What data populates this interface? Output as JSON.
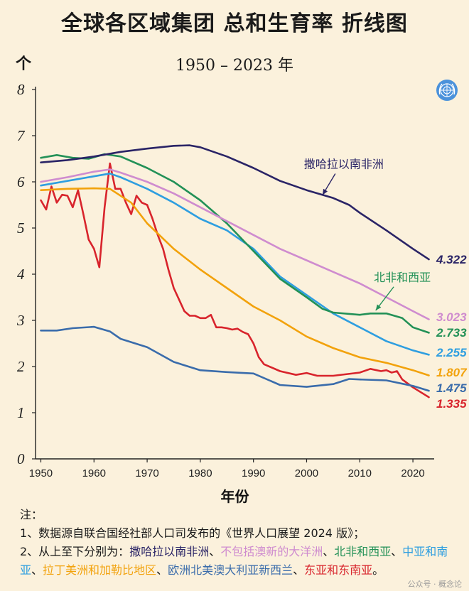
{
  "title": "全球各区域集团 总和生育率 折线图",
  "chart_data": {
    "type": "line",
    "title": "全球各区域集团 总和生育率 折线图",
    "subtitle": "1950 – 2023 年",
    "ylabel": "个",
    "xlabel": "年份",
    "xlim": [
      1949,
      2024
    ],
    "ylim": [
      0,
      8
    ],
    "xticks": [
      1950,
      1960,
      1970,
      1980,
      1990,
      2000,
      2010,
      2020
    ],
    "yticks": [
      0,
      1,
      2,
      3,
      4,
      5,
      6,
      7,
      8
    ],
    "grid": false,
    "series": [
      {
        "name": "撒哈拉以南非洲",
        "color": "#2a2466",
        "end_label": "4.322",
        "points": [
          [
            1950,
            6.42
          ],
          [
            1955,
            6.47
          ],
          [
            1960,
            6.55
          ],
          [
            1965,
            6.65
          ],
          [
            1970,
            6.72
          ],
          [
            1975,
            6.78
          ],
          [
            1978,
            6.79
          ],
          [
            1980,
            6.75
          ],
          [
            1985,
            6.55
          ],
          [
            1990,
            6.3
          ],
          [
            1995,
            6.02
          ],
          [
            2000,
            5.82
          ],
          [
            2005,
            5.65
          ],
          [
            2008,
            5.5
          ],
          [
            2010,
            5.33
          ],
          [
            2015,
            4.95
          ],
          [
            2020,
            4.55
          ],
          [
            2023,
            4.322
          ]
        ]
      },
      {
        "name": "不包括澳新的大洋洲",
        "color": "#cf8ccf",
        "end_label": "3.023",
        "points": [
          [
            1950,
            6.0
          ],
          [
            1955,
            6.1
          ],
          [
            1960,
            6.22
          ],
          [
            1963,
            6.27
          ],
          [
            1965,
            6.2
          ],
          [
            1970,
            6.0
          ],
          [
            1975,
            5.75
          ],
          [
            1980,
            5.45
          ],
          [
            1985,
            5.15
          ],
          [
            1990,
            4.85
          ],
          [
            1995,
            4.55
          ],
          [
            2000,
            4.3
          ],
          [
            2005,
            4.05
          ],
          [
            2010,
            3.8
          ],
          [
            2015,
            3.5
          ],
          [
            2020,
            3.2
          ],
          [
            2023,
            3.023
          ]
        ]
      },
      {
        "name": "北非和西亚",
        "color": "#239157",
        "end_label": "2.733",
        "points": [
          [
            1950,
            6.52
          ],
          [
            1953,
            6.58
          ],
          [
            1956,
            6.52
          ],
          [
            1959,
            6.5
          ],
          [
            1962,
            6.6
          ],
          [
            1965,
            6.55
          ],
          [
            1970,
            6.3
          ],
          [
            1975,
            6.0
          ],
          [
            1980,
            5.6
          ],
          [
            1985,
            5.1
          ],
          [
            1990,
            4.5
          ],
          [
            1995,
            3.9
          ],
          [
            2000,
            3.5
          ],
          [
            2003,
            3.25
          ],
          [
            2005,
            3.17
          ],
          [
            2010,
            3.12
          ],
          [
            2012,
            3.15
          ],
          [
            2015,
            3.15
          ],
          [
            2018,
            3.05
          ],
          [
            2020,
            2.85
          ],
          [
            2023,
            2.733
          ]
        ]
      },
      {
        "name": "中亚和南亚",
        "color": "#2e9ee0",
        "end_label": "2.255",
        "points": [
          [
            1950,
            5.92
          ],
          [
            1955,
            6.02
          ],
          [
            1960,
            6.12
          ],
          [
            1963,
            6.18
          ],
          [
            1965,
            6.1
          ],
          [
            1970,
            5.85
          ],
          [
            1975,
            5.55
          ],
          [
            1980,
            5.2
          ],
          [
            1985,
            4.95
          ],
          [
            1990,
            4.55
          ],
          [
            1995,
            3.95
          ],
          [
            2000,
            3.55
          ],
          [
            2005,
            3.15
          ],
          [
            2010,
            2.85
          ],
          [
            2015,
            2.55
          ],
          [
            2020,
            2.35
          ],
          [
            2023,
            2.255
          ]
        ]
      },
      {
        "name": "拉丁美洲和加勒比地区",
        "color": "#f2a20c",
        "end_label": "1.807",
        "points": [
          [
            1950,
            5.82
          ],
          [
            1955,
            5.85
          ],
          [
            1960,
            5.86
          ],
          [
            1963,
            5.85
          ],
          [
            1967,
            5.55
          ],
          [
            1970,
            5.1
          ],
          [
            1975,
            4.55
          ],
          [
            1980,
            4.1
          ],
          [
            1985,
            3.7
          ],
          [
            1990,
            3.3
          ],
          [
            1995,
            3.0
          ],
          [
            2000,
            2.65
          ],
          [
            2005,
            2.4
          ],
          [
            2010,
            2.2
          ],
          [
            2015,
            2.08
          ],
          [
            2020,
            1.92
          ],
          [
            2023,
            1.807
          ]
        ]
      },
      {
        "name": "欧洲北美澳大利亚新西兰",
        "color": "#3a6cab",
        "end_label": "1.475",
        "points": [
          [
            1950,
            2.78
          ],
          [
            1953,
            2.78
          ],
          [
            1956,
            2.83
          ],
          [
            1960,
            2.86
          ],
          [
            1963,
            2.76
          ],
          [
            1965,
            2.6
          ],
          [
            1970,
            2.42
          ],
          [
            1975,
            2.1
          ],
          [
            1980,
            1.92
          ],
          [
            1985,
            1.88
          ],
          [
            1990,
            1.85
          ],
          [
            1995,
            1.6
          ],
          [
            2000,
            1.56
          ],
          [
            2005,
            1.62
          ],
          [
            2008,
            1.73
          ],
          [
            2010,
            1.72
          ],
          [
            2015,
            1.7
          ],
          [
            2020,
            1.58
          ],
          [
            2023,
            1.475
          ]
        ]
      },
      {
        "name": "东亚和东南亚",
        "color": "#d8242c",
        "end_label": "1.335",
        "points": [
          [
            1950,
            5.6
          ],
          [
            1951,
            5.4
          ],
          [
            1952,
            5.9
          ],
          [
            1953,
            5.55
          ],
          [
            1954,
            5.72
          ],
          [
            1955,
            5.7
          ],
          [
            1956,
            5.45
          ],
          [
            1957,
            5.82
          ],
          [
            1958,
            5.3
          ],
          [
            1959,
            4.75
          ],
          [
            1960,
            4.55
          ],
          [
            1961,
            4.15
          ],
          [
            1962,
            5.45
          ],
          [
            1963,
            6.4
          ],
          [
            1964,
            5.85
          ],
          [
            1965,
            5.85
          ],
          [
            1966,
            5.55
          ],
          [
            1967,
            5.3
          ],
          [
            1968,
            5.7
          ],
          [
            1969,
            5.55
          ],
          [
            1970,
            5.5
          ],
          [
            1971,
            5.2
          ],
          [
            1972,
            4.85
          ],
          [
            1973,
            4.55
          ],
          [
            1974,
            4.1
          ],
          [
            1975,
            3.7
          ],
          [
            1976,
            3.45
          ],
          [
            1977,
            3.2
          ],
          [
            1978,
            3.1
          ],
          [
            1979,
            3.1
          ],
          [
            1980,
            3.05
          ],
          [
            1981,
            3.05
          ],
          [
            1982,
            3.12
          ],
          [
            1983,
            2.85
          ],
          [
            1984,
            2.85
          ],
          [
            1985,
            2.83
          ],
          [
            1986,
            2.8
          ],
          [
            1987,
            2.82
          ],
          [
            1988,
            2.75
          ],
          [
            1989,
            2.7
          ],
          [
            1990,
            2.5
          ],
          [
            1991,
            2.2
          ],
          [
            1992,
            2.05
          ],
          [
            1995,
            1.9
          ],
          [
            1998,
            1.82
          ],
          [
            2000,
            1.86
          ],
          [
            2002,
            1.8
          ],
          [
            2005,
            1.8
          ],
          [
            2010,
            1.87
          ],
          [
            2012,
            1.95
          ],
          [
            2014,
            1.9
          ],
          [
            2015,
            1.92
          ],
          [
            2016,
            1.87
          ],
          [
            2017,
            1.9
          ],
          [
            2018,
            1.72
          ],
          [
            2020,
            1.55
          ],
          [
            2023,
            1.335
          ]
        ]
      }
    ],
    "annotations": [
      {
        "text": "撒哈拉以南非洲",
        "series": 0,
        "at": [
          2003,
          5.67
        ],
        "label_at": [
          2007,
          6.3
        ]
      },
      {
        "text": "北非和西亚",
        "series": 2,
        "at": [
          2013,
          3.17
        ],
        "label_at": [
          2018,
          3.85
        ]
      }
    ]
  },
  "notes": {
    "heading": "注：",
    "line1": "1、数据源自联合国经社部人口司发布的《世界人口展望 2024 版》；",
    "line2_prefix": "2、从上至下分别为：",
    "line2_suffix": "。",
    "separator": "、",
    "items": [
      {
        "text": "撒哈拉以南非洲",
        "color": "#2a2466"
      },
      {
        "text": "不包括澳新的大洋洲",
        "color": "#cf8ccf"
      },
      {
        "text": "北非和西亚",
        "color": "#239157"
      },
      {
        "text": "中亚和南亚",
        "color": "#2e9ee0"
      },
      {
        "text": "拉丁美洲和加勒比地区",
        "color": "#f2a20c"
      },
      {
        "text": "欧洲北美澳大利亚新西兰",
        "color": "#3a6cab"
      },
      {
        "text": "东亚和东南亚",
        "color": "#d8242c"
      }
    ]
  },
  "watermark": "公众号 · 概念论",
  "logo_icon": "un-emblem-icon"
}
